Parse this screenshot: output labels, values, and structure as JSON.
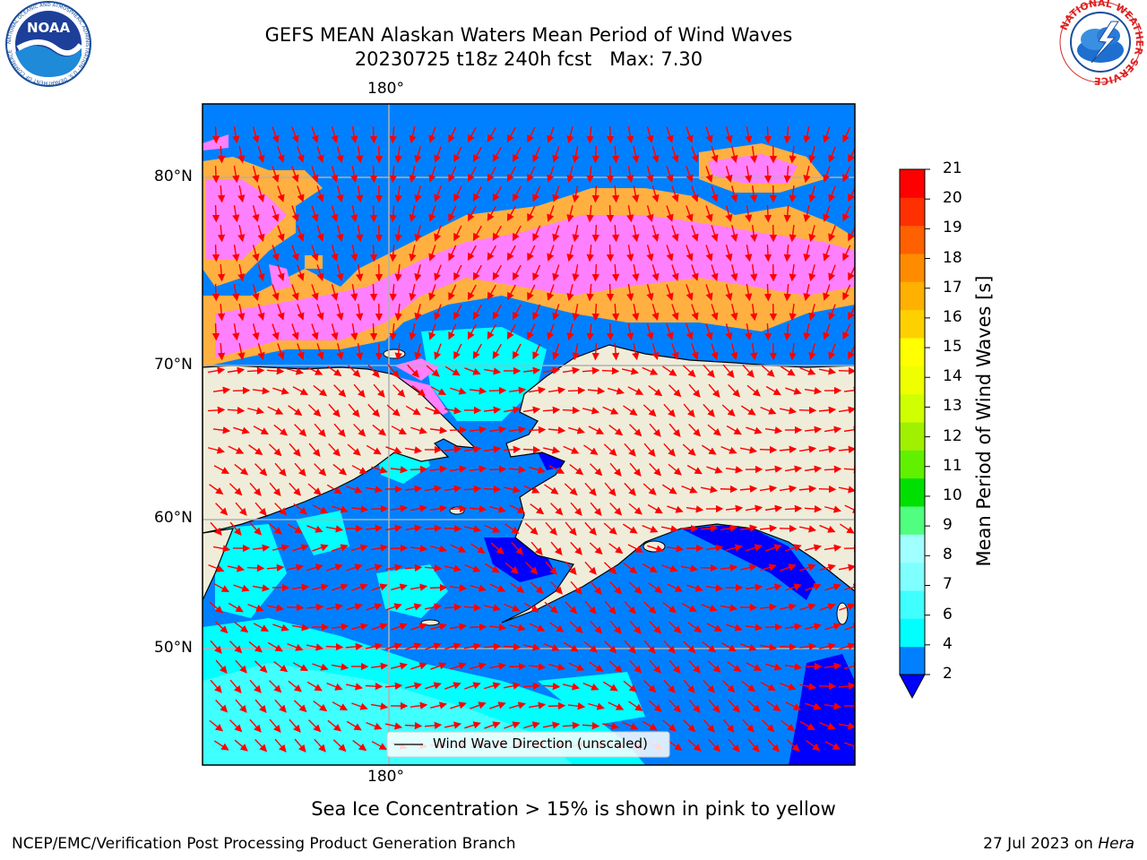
{
  "title": {
    "line1": "GEFS MEAN Alaskan Waters Mean Period of Wind Waves",
    "line2": "20230725 t18z 240h fcst   Max: 7.30"
  },
  "map": {
    "lon_label_top": "180°",
    "lon_label_bottom": "180°",
    "lat_labels": [
      "80°N",
      "70°N",
      "60°N",
      "50°N"
    ],
    "legend_label": "Wind Wave Direction (unscaled)",
    "land_color": "#efedda",
    "arrow_color": "#ff0000"
  },
  "colorbar": {
    "title": "Mean Period of Wind Waves [s]",
    "ticks": [
      "2",
      "4",
      "6",
      "7",
      "8",
      "9",
      "10",
      "11",
      "12",
      "13",
      "14",
      "15",
      "16",
      "17",
      "18",
      "19",
      "20",
      "21"
    ],
    "colors": [
      "#0080ff",
      "#00ffff",
      "#40ffff",
      "#80ffff",
      "#a0ffff",
      "#50ff80",
      "#00e000",
      "#60f000",
      "#a0f000",
      "#d0ff00",
      "#f0ff00",
      "#ffff00",
      "#ffd000",
      "#ffb000",
      "#ff8c00",
      "#ff6000",
      "#ff3000",
      "#ff0000"
    ],
    "under_color": "#0000ff"
  },
  "caption": "Sea Ice Concentration > 15% is shown in pink to yellow",
  "footer": {
    "left": "NCEP/EMC/Verification Post Processing Product Generation Branch",
    "date": "27 Jul 2023 on ",
    "machine": "Hera"
  },
  "logos": {
    "noaa_text": "NOAA",
    "noaa_ring_text": "NATIONAL OCEANIC AND ATMOSPHERIC ADMINISTRATION · U.S. DEPARTMENT OF COMMERCE",
    "nws_ring_text": "NATIONAL WEATHER SERVICE"
  }
}
